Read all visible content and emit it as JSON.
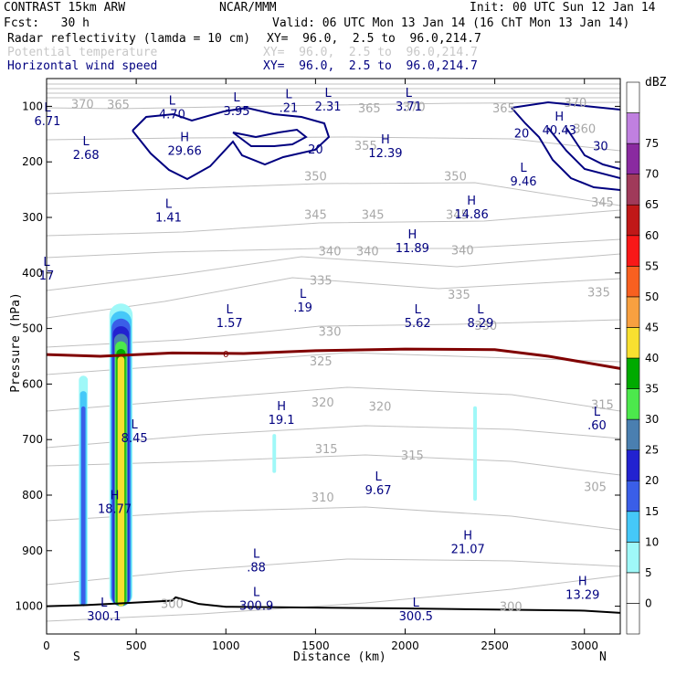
{
  "header": {
    "model": "CONTRAST 15km ARW",
    "org": "NCAR/MMM",
    "init": "Init: 00 UTC Sun 12 Jan 14",
    "fcst": "Fcst:   30 h",
    "valid": "Valid: 06 UTC Mon 13 Jan 14 (16 ChT Mon 13 Jan 14)",
    "field1_name": "Radar reflectivity (lamda = 10 cm)",
    "field1_xy": "XY=  96.0,  2.5 to  96.0,214.7",
    "field2_name": "Potential temperature",
    "field2_xy": "XY=  96.0,  2.5 to  96.0,214.7",
    "field3_name": "Horizontal wind speed",
    "field3_xy": "XY=  96.0,  2.5 to  96.0,214.7"
  },
  "colors": {
    "theta": "#c0c0c0",
    "wind": "#000080",
    "freezing": "#800000",
    "terrain": "#000000"
  },
  "chart_data": {
    "type": "cross-section",
    "xlabel": "Distance (km)",
    "ylabel": "Pressure (hPa)",
    "xlim": [
      0,
      3200
    ],
    "ylim_hpa": [
      1050,
      50
    ],
    "x_ticks": [
      0,
      500,
      1000,
      1500,
      2000,
      2500,
      3000
    ],
    "y_ticks": [
      100,
      200,
      300,
      400,
      500,
      600,
      700,
      800,
      900,
      1000
    ],
    "end_labels": {
      "left": "S",
      "right": "N"
    },
    "terrain_top_pressure": [
      [
        0,
        1000
      ],
      [
        220,
        998
      ],
      [
        700,
        990
      ],
      [
        720,
        984
      ],
      [
        850,
        996
      ],
      [
        1000,
        1001
      ],
      [
        2000,
        1004
      ],
      [
        3000,
        1008
      ],
      [
        3200,
        1012
      ]
    ],
    "freezing_level": {
      "label": "0",
      "pressure": [
        [
          0,
          547
        ],
        [
          300,
          550
        ],
        [
          700,
          544
        ],
        [
          1100,
          545
        ],
        [
          1500,
          540
        ],
        [
          2000,
          537
        ],
        [
          2500,
          538
        ],
        [
          2800,
          550
        ],
        [
          3200,
          572
        ]
      ]
    },
    "theta_contours": [
      {
        "label": "365",
        "x": 400,
        "p": 96
      },
      {
        "label": "370",
        "x": 2050,
        "p": 100
      },
      {
        "label": "365",
        "x": 1800,
        "p": 103
      },
      {
        "label": "365",
        "x": 2550,
        "p": 103
      },
      {
        "label": "370",
        "x": 200,
        "p": 95
      },
      {
        "label": "370",
        "x": 2950,
        "p": 93
      },
      {
        "label": "360",
        "x": 3000,
        "p": 140
      },
      {
        "label": "355",
        "x": 1780,
        "p": 170
      },
      {
        "label": "350",
        "x": 1500,
        "p": 225
      },
      {
        "label": "350",
        "x": 2280,
        "p": 225
      },
      {
        "label": "345",
        "x": 1500,
        "p": 294
      },
      {
        "label": "345",
        "x": 1820,
        "p": 294
      },
      {
        "label": "345",
        "x": 2290,
        "p": 294
      },
      {
        "label": "345",
        "x": 3100,
        "p": 272
      },
      {
        "label": "340",
        "x": 1580,
        "p": 360
      },
      {
        "label": "340",
        "x": 1790,
        "p": 360
      },
      {
        "label": "340",
        "x": 2320,
        "p": 358
      },
      {
        "label": "335",
        "x": 1530,
        "p": 413
      },
      {
        "label": "335",
        "x": 2300,
        "p": 438
      },
      {
        "label": "335",
        "x": 3080,
        "p": 434
      },
      {
        "label": "330",
        "x": 1580,
        "p": 505
      },
      {
        "label": "330",
        "x": 2450,
        "p": 494
      },
      {
        "label": "325",
        "x": 1530,
        "p": 558
      },
      {
        "label": "320",
        "x": 1540,
        "p": 632
      },
      {
        "label": "320",
        "x": 1860,
        "p": 640
      },
      {
        "label": "315",
        "x": 1560,
        "p": 716
      },
      {
        "label": "315",
        "x": 2040,
        "p": 728
      },
      {
        "label": "315",
        "x": 3100,
        "p": 636
      },
      {
        "label": "310",
        "x": 1540,
        "p": 803
      },
      {
        "label": "305",
        "x": 3060,
        "p": 784
      },
      {
        "label": "300",
        "x": 2590,
        "p": 1000
      },
      {
        "label": "300",
        "x": 700,
        "p": 995
      }
    ],
    "wind_contours": [
      {
        "label": "20",
        "x": 1500,
        "p": 177
      },
      {
        "label": "20",
        "x": 2650,
        "p": 148
      },
      {
        "label": "30",
        "x": 3090,
        "p": 171
      }
    ],
    "extrema": [
      {
        "type": "L",
        "value": "6.71",
        "x": 5,
        "p": 109
      },
      {
        "type": "L",
        "value": "4.70",
        "x": 700,
        "p": 97
      },
      {
        "type": "L",
        "value": "3.95",
        "x": 1060,
        "p": 91
      },
      {
        "type": "L",
        "value": ".21",
        "x": 1350,
        "p": 85
      },
      {
        "type": "L",
        "value": "2.31",
        "x": 1570,
        "p": 83
      },
      {
        "type": "L",
        "value": "3.71",
        "x": 2020,
        "p": 83
      },
      {
        "type": "L",
        "value": "2.68",
        "x": 220,
        "p": 170
      },
      {
        "type": "H",
        "value": "29.66",
        "x": 770,
        "p": 163
      },
      {
        "type": "H",
        "value": "12.39",
        "x": 1890,
        "p": 167
      },
      {
        "type": "H",
        "value": "40.43",
        "x": 2860,
        "p": 126
      },
      {
        "type": "L",
        "value": "9.46",
        "x": 2660,
        "p": 218
      },
      {
        "type": "L",
        "value": "1.41",
        "x": 680,
        "p": 283
      },
      {
        "type": "H",
        "value": "14.86",
        "x": 2370,
        "p": 277
      },
      {
        "type": "H",
        "value": "11.89",
        "x": 2040,
        "p": 338
      },
      {
        "type": "L",
        "value": ".19",
        "x": 1430,
        "p": 445
      },
      {
        "type": "L",
        "value": "1.57",
        "x": 1020,
        "p": 473
      },
      {
        "type": "L",
        "value": "5.62",
        "x": 2070,
        "p": 473
      },
      {
        "type": "L",
        "value": "8.29",
        "x": 2420,
        "p": 473
      },
      {
        "type": "H",
        "value": "19.1",
        "x": 1310,
        "p": 647
      },
      {
        "type": "L",
        "value": ".60",
        "x": 3070,
        "p": 657
      },
      {
        "type": "L",
        "value": "8.45",
        "x": 490,
        "p": 680
      },
      {
        "type": "L",
        "value": "9.67",
        "x": 1850,
        "p": 774
      },
      {
        "type": "H",
        "value": "18.77",
        "x": 380,
        "p": 807
      },
      {
        "type": "H",
        "value": "21.07",
        "x": 2350,
        "p": 880
      },
      {
        "type": "L",
        "value": ".88",
        "x": 1170,
        "p": 913
      },
      {
        "type": "H",
        "value": "13.29",
        "x": 2990,
        "p": 962
      },
      {
        "type": "L",
        "value": "300.9",
        "x": 1170,
        "p": 982
      },
      {
        "type": "L",
        "value": "300.5",
        "x": 2060,
        "p": 1001
      },
      {
        "type": "L",
        "value": "17",
        "x": 0,
        "p": 387
      },
      {
        "type": "L",
        "value": "300.1",
        "x": 320,
        "p": 1001
      }
    ],
    "reflectivity_cells": [
      {
        "x_min": 180,
        "x_max": 230,
        "p_top": 585,
        "p_bottom": 1000,
        "max_dbz": 15
      },
      {
        "x_min": 350,
        "x_max": 480,
        "p_top": 455,
        "p_bottom": 1000,
        "max_dbz": 40
      },
      {
        "x_min": 1260,
        "x_max": 1280,
        "p_top": 690,
        "p_bottom": 760,
        "max_dbz": 5
      },
      {
        "x_min": 2380,
        "x_max": 2400,
        "p_top": 640,
        "p_bottom": 810,
        "max_dbz": 5
      }
    ],
    "colorbar": {
      "title": "dBZ",
      "levels": [
        "0",
        "5",
        "10",
        "15",
        "20",
        "25",
        "30",
        "35",
        "40",
        "45",
        "50",
        "55",
        "60",
        "65",
        "70",
        "75"
      ],
      "colors": [
        "#ffffff",
        "#ffffff",
        "#9ff8f8",
        "#45c8f8",
        "#3a5ee8",
        "#2222d0",
        "#4a7fb0",
        "#4ce84c",
        "#00aa00",
        "#f8e030",
        "#f8a040",
        "#f86020",
        "#f81818",
        "#c01818",
        "#a03a5a",
        "#8a2aa0",
        "#c080e0",
        "#ffffff"
      ]
    }
  }
}
